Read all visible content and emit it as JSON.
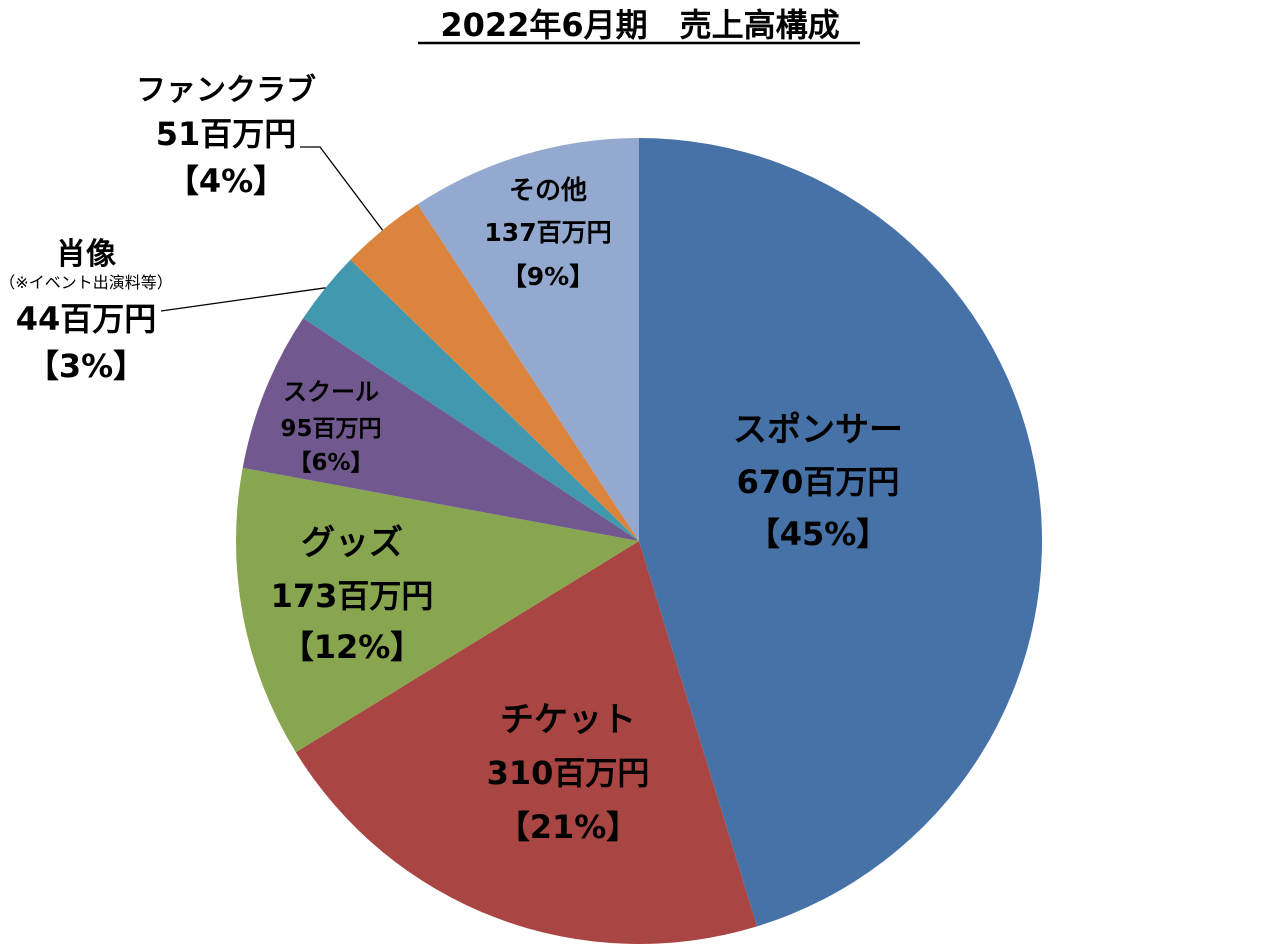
{
  "chart_data": {
    "type": "pie",
    "title": "2022年6月期　売上高構成",
    "start_angle_deg": 0,
    "direction": "clockwise",
    "slices": [
      {
        "name": "スポンサー",
        "note": "",
        "value": 670,
        "value_label": "670百万円",
        "percent_label": "【45%】",
        "color": "#4672A8"
      },
      {
        "name": "チケット",
        "note": "",
        "value": 310,
        "value_label": "310百万円",
        "percent_label": "【21%】",
        "color": "#A94542"
      },
      {
        "name": "グッズ",
        "note": "",
        "value": 173,
        "value_label": "173百万円",
        "percent_label": "【12%】",
        "color": "#88A54F"
      },
      {
        "name": "スクール",
        "note": "",
        "value": 95,
        "value_label": "95百万円",
        "percent_label": "【6%】",
        "color": "#71588F"
      },
      {
        "name": "肖像",
        "note": "（※イベント出演料等）",
        "value": 44,
        "value_label": "44百万円",
        "percent_label": "【3%】",
        "color": "#4198AF"
      },
      {
        "name": "ファンクラブ",
        "note": "",
        "value": 51,
        "value_label": "51百万円",
        "percent_label": "【4%】",
        "color": "#DB843D"
      },
      {
        "name": "その他",
        "note": "",
        "value": 137,
        "value_label": "137百万円",
        "percent_label": "【9%】",
        "color": "#93A9CF"
      }
    ]
  }
}
